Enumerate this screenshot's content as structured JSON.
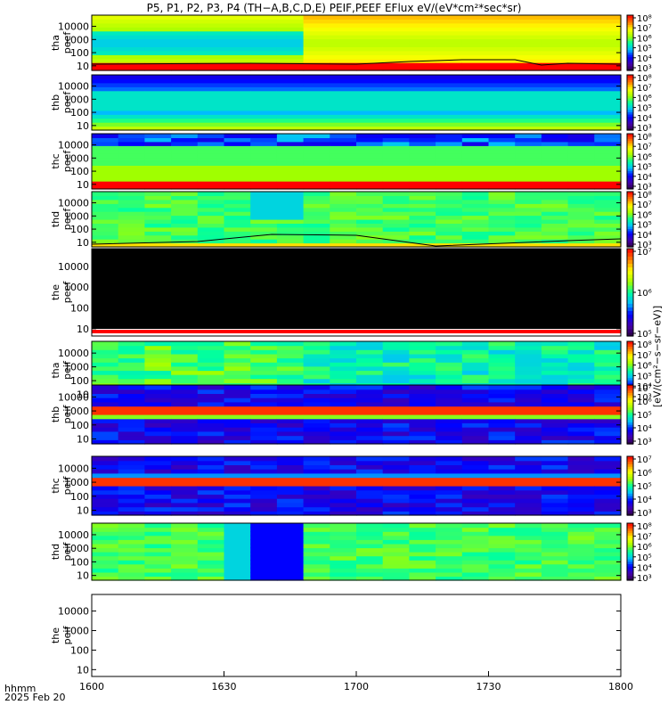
{
  "title": "P5, P1, P2, P3, P4 (TH−A,B,C,D,E) PEIF,PEEF EFlux eV/(eV*cm²*sec*sr)",
  "colorbar_title": "[eV/(cm²−s−sr−eV)]",
  "xaxis": {
    "row_label": "hhmm",
    "date_label": "2025 Feb 20"
  },
  "chart_data": {
    "type": "heatmap",
    "x_range": [
      "1600",
      "1800"
    ],
    "x_ticks": [
      "1600",
      "1630",
      "1700",
      "1730",
      "1800"
    ],
    "y_scale": "log",
    "y_ticks": [
      "10",
      "100",
      "1000",
      "10000"
    ],
    "panels": [
      {
        "name": "tha peef",
        "line1": "tha",
        "line2": "peef",
        "cb_ticks": [
          "10³",
          "10⁴",
          "10⁵",
          "10⁶",
          "10⁷",
          "10⁸"
        ]
      },
      {
        "name": "thb peef",
        "line1": "thb",
        "line2": "peef",
        "cb_ticks": [
          "10³",
          "10⁴",
          "10⁵",
          "10⁶",
          "10⁷",
          "10⁸"
        ]
      },
      {
        "name": "thc peef",
        "line1": "thc",
        "line2": "peef",
        "cb_ticks": [
          "10³",
          "10⁴",
          "10⁵",
          "10⁶",
          "10⁷",
          "10⁸"
        ]
      },
      {
        "name": "thd peef",
        "line1": "thd",
        "line2": "peef",
        "cb_ticks": [
          "10³",
          "10⁴",
          "10⁵",
          "10⁶",
          "10⁷",
          "10⁸"
        ]
      },
      {
        "name": "the peef",
        "line1": "the",
        "line2": "peef",
        "cb_ticks": [
          "10⁵",
          "10⁶",
          "10⁷"
        ]
      },
      {
        "name": "tha peif",
        "line1": "tha",
        "line2": "peif",
        "cb_ticks": [
          "10³",
          "10⁴",
          "10⁵",
          "10⁶",
          "10⁷",
          "10⁸"
        ]
      },
      {
        "name": "thb peif",
        "line1": "thb",
        "line2": "peif",
        "cb_ticks": [
          "10³",
          "10⁴",
          "10⁵",
          "10⁶",
          "10⁷"
        ]
      },
      {
        "name": "thc peif",
        "line1": "thc",
        "line2": "peif",
        "cb_ticks": [
          "10³",
          "10⁴",
          "10⁵",
          "10⁶",
          "10⁷"
        ]
      },
      {
        "name": "thd peif",
        "line1": "thd",
        "line2": "peif",
        "cb_ticks": [
          "10³",
          "10⁴",
          "10⁵",
          "10⁶",
          "10⁷",
          "10⁸"
        ]
      },
      {
        "name": "the peif",
        "line1": "the",
        "line2": "peif",
        "cb_ticks": []
      }
    ]
  }
}
